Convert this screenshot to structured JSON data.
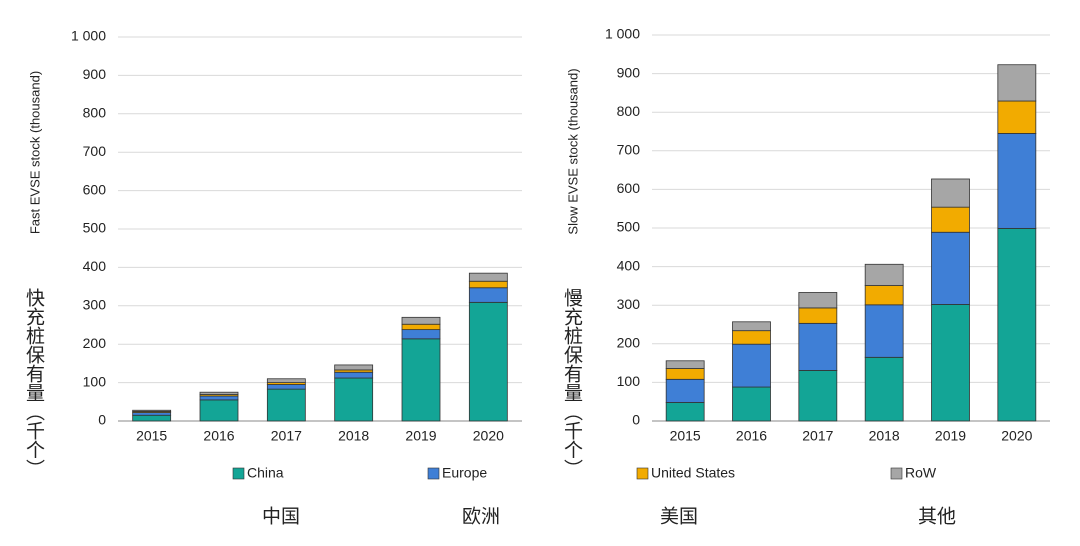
{
  "chart_data": [
    {
      "type": "stacked_bar",
      "y_label": "Fast EVSE stock (thousand)",
      "y_label_zh": "快充桩保有量（千个）",
      "categories": [
        "2015",
        "2016",
        "2017",
        "2018",
        "2019",
        "2020"
      ],
      "series": [
        {
          "name": "China",
          "color": "#13a596",
          "values": [
            15,
            55,
            83,
            112,
            214,
            309
          ]
        },
        {
          "name": "Europe",
          "color": "#3f7fd6",
          "values": [
            7,
            10,
            12,
            15,
            24,
            38
          ]
        },
        {
          "name": "United States",
          "color": "#f2ab00",
          "values": [
            3,
            4,
            5,
            6,
            14,
            17
          ]
        },
        {
          "name": "RoW",
          "color": "#a6a6a6",
          "values": [
            3,
            6,
            10,
            13,
            18,
            21
          ]
        }
      ],
      "ylim": [
        0,
        1000
      ],
      "yticks": [
        0,
        100,
        200,
        300,
        400,
        500,
        600,
        700,
        800,
        900,
        {
          "value": 1000,
          "label": "1 000"
        }
      ],
      "grid": true,
      "annotations": [
        "中国",
        "欧洲"
      ]
    },
    {
      "type": "stacked_bar",
      "y_label": "Slow EVSE stock (thousand)",
      "y_label_zh": "慢充桩保有量（千个）",
      "categories": [
        "2015",
        "2016",
        "2017",
        "2018",
        "2019",
        "2020"
      ],
      "series": [
        {
          "name": "China",
          "color": "#13a596",
          "values": [
            48,
            88,
            131,
            165,
            302,
            499
          ]
        },
        {
          "name": "Europe",
          "color": "#3f7fd6",
          "values": [
            60,
            111,
            122,
            136,
            187,
            246
          ]
        },
        {
          "name": "United States",
          "color": "#f2ab00",
          "values": [
            28,
            35,
            40,
            50,
            65,
            84
          ]
        },
        {
          "name": "RoW",
          "color": "#a6a6a6",
          "values": [
            20,
            23,
            40,
            55,
            73,
            94
          ]
        }
      ],
      "ylim": [
        0,
        1000
      ],
      "yticks": [
        0,
        100,
        200,
        300,
        400,
        500,
        600,
        700,
        800,
        900,
        {
          "value": 1000,
          "label": "1 000"
        }
      ],
      "grid": true,
      "annotations": [
        "美国",
        "其他"
      ]
    }
  ]
}
